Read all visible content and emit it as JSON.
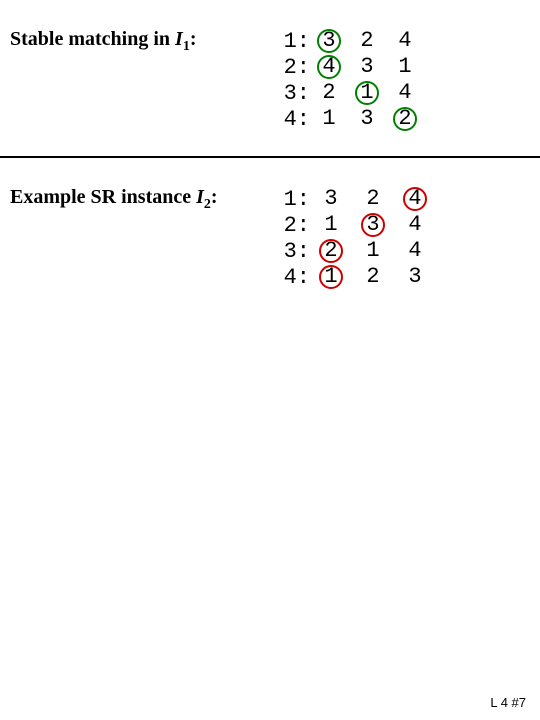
{
  "section1": {
    "label_prefix": "Stable matching in ",
    "label_var": "I",
    "label_sub": "1",
    "label_suffix": ":",
    "rows": [
      {
        "key": "1:",
        "prefs": [
          {
            "v": "3",
            "mark": "green"
          },
          {
            "v": "2",
            "mark": null
          },
          {
            "v": "4",
            "mark": null
          }
        ]
      },
      {
        "key": "2:",
        "prefs": [
          {
            "v": "4",
            "mark": "green"
          },
          {
            "v": "3",
            "mark": null
          },
          {
            "v": "1",
            "mark": null
          }
        ]
      },
      {
        "key": "3:",
        "prefs": [
          {
            "v": "2",
            "mark": null
          },
          {
            "v": "1",
            "mark": "green"
          },
          {
            "v": "4",
            "mark": null
          }
        ]
      },
      {
        "key": "4:",
        "prefs": [
          {
            "v": "1",
            "mark": null
          },
          {
            "v": "3",
            "mark": null
          },
          {
            "v": "2",
            "mark": "green"
          }
        ]
      }
    ]
  },
  "section2": {
    "label_prefix": "Example SR instance ",
    "label_var": "I",
    "label_sub": "2",
    "label_suffix": ":",
    "rows": [
      {
        "key": "1:",
        "prefs": [
          {
            "v": "3",
            "mark": null
          },
          {
            "v": "2",
            "mark": null
          },
          {
            "v": "4",
            "mark": "red"
          }
        ]
      },
      {
        "key": "2:",
        "prefs": [
          {
            "v": "1",
            "mark": null
          },
          {
            "v": "3",
            "mark": "red"
          },
          {
            "v": "4",
            "mark": null
          }
        ]
      },
      {
        "key": "3:",
        "prefs": [
          {
            "v": "2",
            "mark": "red"
          },
          {
            "v": "1",
            "mark": null
          },
          {
            "v": "4",
            "mark": null
          }
        ]
      },
      {
        "key": "4:",
        "prefs": [
          {
            "v": "1",
            "mark": "red"
          },
          {
            "v": "2",
            "mark": null
          },
          {
            "v": "3",
            "mark": null
          }
        ]
      }
    ]
  },
  "footer": "L 4 #7",
  "colors": {
    "green": "#008000",
    "red": "#cc0000",
    "text": "#000000",
    "bg": "#ffffff"
  }
}
